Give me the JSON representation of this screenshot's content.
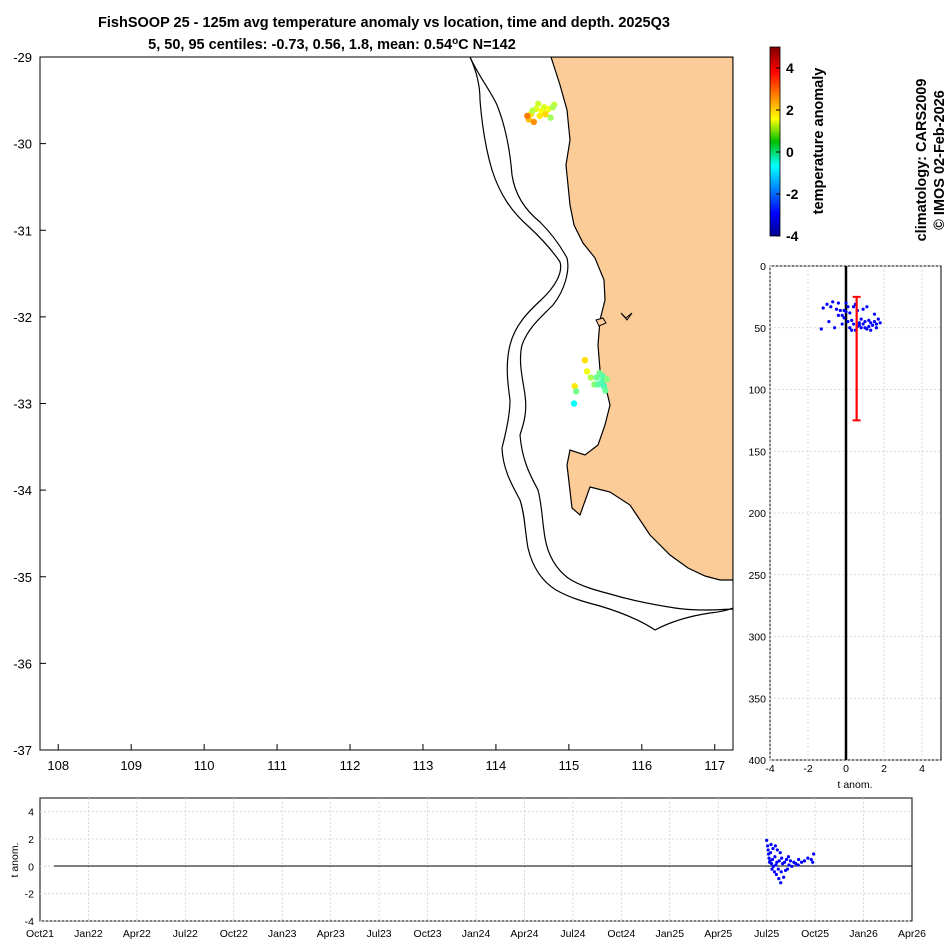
{
  "colors": {
    "land": "#fbcc98",
    "coast": "#000000",
    "depth_points": "#0000ff",
    "time_points": "#0000ff",
    "centile_bar": "#ff0000",
    "grid": "#d0d0d0"
  },
  "chart_data": [
    {
      "id": "map",
      "type": "scatter",
      "title": "FishSOOP 25 - 125m avg temperature anomaly vs location, time and depth. 2025Q3",
      "subtitle_prefix": "5, 50, 95 centiles: -0.73, 0.56, 1.8, mean: 0.54",
      "subtitle_suffix": "C N=142",
      "x_ticks": [
        "108",
        "109",
        "110",
        "111",
        "112",
        "113",
        "114",
        "115",
        "116",
        "117"
      ],
      "y_ticks": [
        "-29",
        "-30",
        "-31",
        "-32",
        "-33",
        "-34",
        "-35",
        "-36",
        "-37"
      ],
      "xlim": [
        107.75,
        117.25
      ],
      "ylim": [
        -37,
        -29
      ],
      "points": [
        {
          "lon": 114.45,
          "lat": -29.72,
          "anom": 2.2
        },
        {
          "lon": 114.48,
          "lat": -29.66,
          "anom": 1.9
        },
        {
          "lon": 114.52,
          "lat": -29.75,
          "anom": 2.6
        },
        {
          "lon": 114.55,
          "lat": -29.6,
          "anom": 1.4
        },
        {
          "lon": 114.58,
          "lat": -29.54,
          "anom": 1.2
        },
        {
          "lon": 114.6,
          "lat": -29.68,
          "anom": 1.8
        },
        {
          "lon": 114.63,
          "lat": -29.62,
          "anom": 1.6
        },
        {
          "lon": 114.66,
          "lat": -29.58,
          "anom": 1.3
        },
        {
          "lon": 114.68,
          "lat": -29.66,
          "anom": 2.0
        },
        {
          "lon": 114.72,
          "lat": -29.6,
          "anom": 1.5
        },
        {
          "lon": 114.75,
          "lat": -29.7,
          "anom": 0.8
        },
        {
          "lon": 114.8,
          "lat": -29.55,
          "anom": 1.1
        },
        {
          "lon": 114.5,
          "lat": -29.62,
          "anom": 1.0
        },
        {
          "lon": 114.43,
          "lat": -29.68,
          "anom": 2.8
        },
        {
          "lon": 114.78,
          "lat": -29.58,
          "anom": 0.9
        },
        {
          "lon": 115.22,
          "lat": -32.5,
          "anom": 1.9
        },
        {
          "lon": 115.25,
          "lat": -32.63,
          "anom": 1.5
        },
        {
          "lon": 115.3,
          "lat": -32.7,
          "anom": 0.9
        },
        {
          "lon": 115.35,
          "lat": -32.78,
          "anom": 0.6
        },
        {
          "lon": 115.38,
          "lat": -32.7,
          "anom": 0.3
        },
        {
          "lon": 115.4,
          "lat": -32.78,
          "anom": 0.2
        },
        {
          "lon": 115.42,
          "lat": -32.65,
          "anom": 0.4
        },
        {
          "lon": 115.45,
          "lat": -32.75,
          "anom": 0.1
        },
        {
          "lon": 115.48,
          "lat": -32.8,
          "anom": 0.0
        },
        {
          "lon": 115.5,
          "lat": -32.85,
          "anom": 0.3
        },
        {
          "lon": 115.52,
          "lat": -32.72,
          "anom": 0.5
        },
        {
          "lon": 115.46,
          "lat": -32.68,
          "anom": 0.2
        },
        {
          "lon": 115.08,
          "lat": -32.8,
          "anom": 1.8
        },
        {
          "lon": 115.1,
          "lat": -32.86,
          "anom": 0.4
        },
        {
          "lon": 115.07,
          "lat": -33.0,
          "anom": -0.6
        }
      ]
    },
    {
      "id": "colorbar",
      "type": "heatmap",
      "label": "temperature anomaly",
      "range": [
        -4,
        5
      ],
      "ticks": [
        "4",
        "2",
        "0",
        "-2",
        "-4"
      ]
    },
    {
      "id": "depth",
      "type": "scatter",
      "xlabel": "t anom.",
      "x_ticks": [
        "-4",
        "-2",
        "0",
        "2",
        "4"
      ],
      "y_ticks": [
        "0",
        "50",
        "100",
        "150",
        "200",
        "250",
        "300",
        "350",
        "400"
      ],
      "xlim": [
        -4,
        5
      ],
      "ylim": [
        0,
        400
      ],
      "centiles": {
        "p5": -0.73,
        "p50": 0.56,
        "p95": 1.8,
        "mean": 0.54
      },
      "depth_range": [
        25,
        125
      ],
      "points": [
        [
          -1.2,
          34
        ],
        [
          -1.0,
          31
        ],
        [
          -0.8,
          33
        ],
        [
          -0.7,
          29
        ],
        [
          -0.5,
          35
        ],
        [
          -0.4,
          30
        ],
        [
          -0.3,
          36
        ],
        [
          -0.2,
          40
        ],
        [
          -0.1,
          42
        ],
        [
          0.0,
          37
        ],
        [
          0.1,
          45
        ],
        [
          0.2,
          38
        ],
        [
          0.3,
          44
        ],
        [
          0.4,
          33
        ],
        [
          0.5,
          31
        ],
        [
          0.6,
          36
        ],
        [
          0.7,
          48
        ],
        [
          0.8,
          50
        ],
        [
          0.9,
          47
        ],
        [
          1.0,
          45
        ],
        [
          1.1,
          51
        ],
        [
          1.2,
          49
        ],
        [
          1.3,
          46
        ],
        [
          1.4,
          48
        ],
        [
          1.5,
          45
        ],
        [
          1.6,
          47
        ],
        [
          1.7,
          43
        ],
        [
          1.8,
          46
        ],
        [
          1.1,
          33
        ],
        [
          1.5,
          39
        ],
        [
          0.9,
          35
        ],
        [
          -0.9,
          45
        ],
        [
          -1.3,
          51
        ],
        [
          -0.6,
          50
        ],
        [
          0.3,
          52
        ],
        [
          0.6,
          49
        ],
        [
          0.4,
          47
        ],
        [
          0.2,
          50
        ],
        [
          0.7,
          46
        ],
        [
          1.0,
          50
        ],
        [
          1.3,
          52
        ],
        [
          1.6,
          50
        ],
        [
          -0.2,
          47
        ],
        [
          0.1,
          33
        ],
        [
          -0.4,
          40
        ],
        [
          0.0,
          30
        ],
        [
          0.8,
          43
        ],
        [
          1.2,
          44
        ],
        [
          0.5,
          52
        ],
        [
          -0.1,
          36
        ]
      ]
    },
    {
      "id": "timeseries",
      "type": "scatter",
      "ylabel": "t anom.",
      "x_ticks": [
        "Oct21",
        "Jan22",
        "Apr22",
        "Jul22",
        "Oct22",
        "Jan23",
        "Apr23",
        "Jul23",
        "Oct23",
        "Jan24",
        "Apr24",
        "Jul24",
        "Oct24",
        "Jan25",
        "Apr25",
        "Jul25",
        "Oct25",
        "Jan26",
        "Apr26"
      ],
      "y_ticks": [
        "4",
        "2",
        "0",
        "-2",
        "-4"
      ],
      "xlim": [
        0,
        18
      ],
      "ylim": [
        -4,
        5
      ],
      "points": [
        [
          15.0,
          1.9
        ],
        [
          15.02,
          1.5
        ],
        [
          15.03,
          1.2
        ],
        [
          15.04,
          0.9
        ],
        [
          15.05,
          0.6
        ],
        [
          15.06,
          0.3
        ],
        [
          15.07,
          0.4
        ],
        [
          15.08,
          1.0
        ],
        [
          15.09,
          1.6
        ],
        [
          15.1,
          0.2
        ],
        [
          15.11,
          -0.2
        ],
        [
          15.12,
          0.5
        ],
        [
          15.13,
          1.3
        ],
        [
          15.14,
          0.0
        ],
        [
          15.16,
          -0.4
        ],
        [
          15.17,
          0.7
        ],
        [
          15.18,
          1.5
        ],
        [
          15.19,
          0.1
        ],
        [
          15.2,
          -0.6
        ],
        [
          15.21,
          0.3
        ],
        [
          15.22,
          1.2
        ],
        [
          15.24,
          -0.2
        ],
        [
          15.25,
          -0.9
        ],
        [
          15.26,
          0.4
        ],
        [
          15.28,
          1.0
        ],
        [
          15.29,
          -1.2
        ],
        [
          15.3,
          -0.4
        ],
        [
          15.31,
          0.6
        ],
        [
          15.33,
          0.2
        ],
        [
          15.35,
          -0.8
        ],
        [
          15.37,
          0.3
        ],
        [
          15.39,
          -0.3
        ],
        [
          15.41,
          0.5
        ],
        [
          15.43,
          -0.2
        ],
        [
          15.46,
          0.1
        ],
        [
          15.49,
          0.4
        ],
        [
          15.52,
          0.0
        ],
        [
          15.56,
          0.3
        ],
        [
          15.6,
          0.2
        ],
        [
          15.66,
          0.5
        ],
        [
          15.72,
          0.3
        ],
        [
          15.78,
          0.4
        ],
        [
          15.85,
          0.6
        ],
        [
          15.92,
          0.5
        ],
        [
          15.97,
          0.9
        ],
        [
          15.95,
          0.3
        ],
        [
          15.65,
          0.1
        ],
        [
          15.45,
          0.7
        ]
      ]
    }
  ],
  "side_text": {
    "climatology": "climatology: CARS2009",
    "copyright": "© IMOS 02-Feb-2026"
  }
}
